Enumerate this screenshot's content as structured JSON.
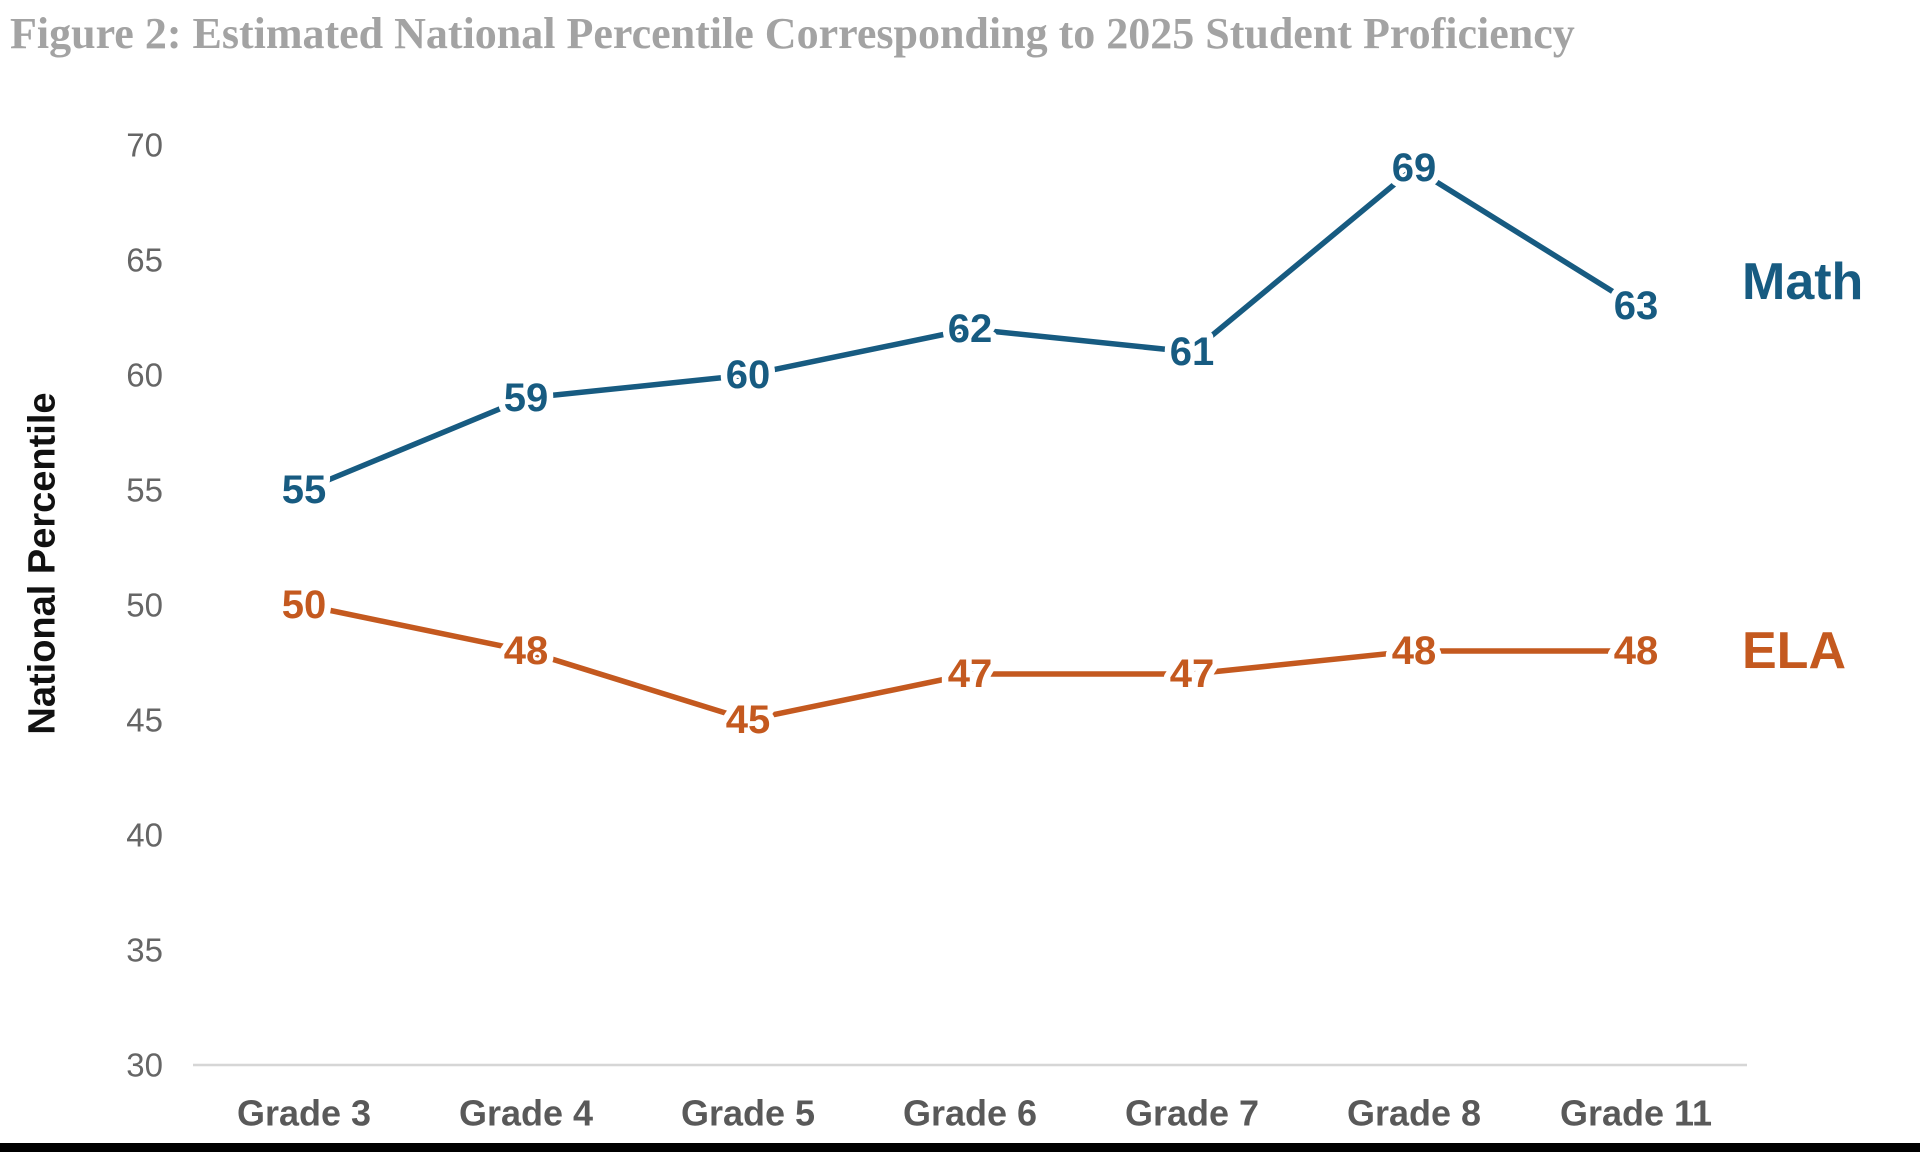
{
  "title": "Figure 2: Estimated National Percentile Corresponding to 2025 Student Proficiency",
  "colors": {
    "math": "#175B81",
    "ela": "#C4591F",
    "title_gray": "#A3A3A3",
    "y_tick_gray": "#666666",
    "x_label_gray": "#595959",
    "axis_line": "#D6D6D6",
    "y_axis_title": "#111111"
  },
  "chart_data": {
    "type": "line",
    "title": "Figure 2: Estimated National Percentile Corresponding to 2025 Student Proficiency",
    "categories": [
      "Grade 3",
      "Grade 4",
      "Grade 5",
      "Grade 6",
      "Grade 7",
      "Grade 8",
      "Grade 11"
    ],
    "series": [
      {
        "name": "Math",
        "values": [
          55,
          59,
          60,
          62,
          61,
          69,
          63
        ],
        "color": "#175B81"
      },
      {
        "name": "ELA",
        "values": [
          50,
          48,
          45,
          47,
          47,
          48,
          48
        ],
        "color": "#C4591F"
      }
    ],
    "xlabel": "",
    "ylabel": "National Percentile",
    "ylim": [
      30,
      70
    ],
    "ytick_step": 5,
    "yticks": [
      30,
      35,
      40,
      45,
      50,
      55,
      60,
      65,
      70
    ],
    "grid": false,
    "data_labels": true,
    "legend_position": "end-of-line-right"
  }
}
